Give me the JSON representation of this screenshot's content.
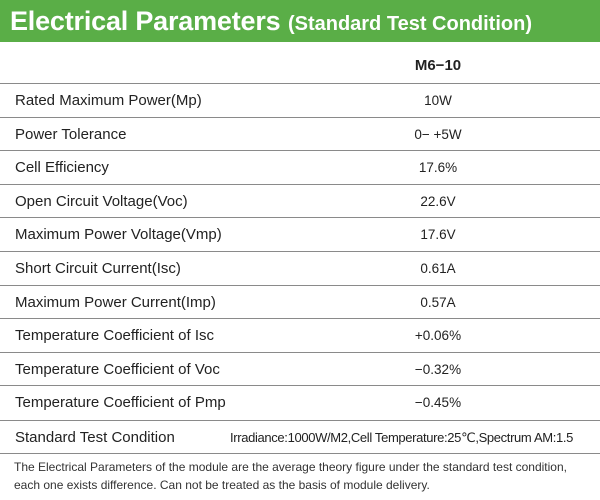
{
  "banner": {
    "title": "Electrical Parameters",
    "subtitle": "(Standard Test Condition)"
  },
  "model": "M6−10",
  "rows": [
    {
      "label": "Rated Maximum Power(Mp)",
      "value": "10W"
    },
    {
      "label": "Power Tolerance",
      "value": "0− +5W"
    },
    {
      "label": "Cell Efficiency",
      "value": "17.6%"
    },
    {
      "label": "Open Circuit Voltage(Voc)",
      "value": "22.6V"
    },
    {
      "label": "Maximum Power Voltage(Vmp)",
      "value": "17.6V"
    },
    {
      "label": "Short Circuit Current(Isc)",
      "value": "0.61A"
    },
    {
      "label": "Maximum Power Current(Imp)",
      "value": "0.57A"
    },
    {
      "label": "Temperature Coefficient of Isc",
      "value": "+0.06%"
    },
    {
      "label": "Temperature Coefficient of Voc",
      "value": "−0.32%"
    },
    {
      "label": "Temperature Coefficient of Pmp",
      "value": "−0.45%"
    }
  ],
  "stc": {
    "label": "Standard Test Condition",
    "value": "Irradiance:1000W/M2,Cell Temperature:25℃,Spectrum AM:1.5"
  },
  "footnote": {
    "line1": "The Electrical Parameters of the module are the average theory figure under the standard test condition,",
    "line2": "each one exists difference. Can not be treated as the basis of module delivery."
  },
  "colors": {
    "banner": "#5aae47",
    "rule": "#8a8a8a"
  }
}
